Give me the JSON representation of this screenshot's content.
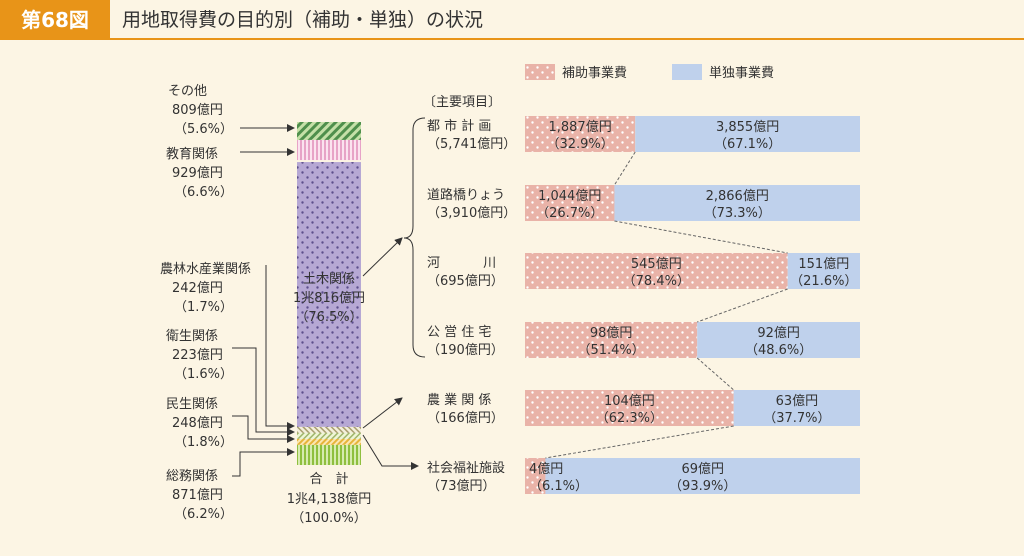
{
  "header": {
    "figure_no": "第68図",
    "title": "用地取得費の目的別（補助・単独）の状況"
  },
  "chart_data": {
    "type": "bar",
    "legend": [
      {
        "name": "補助事業費",
        "color": "#e9b3a8"
      },
      {
        "name": "単独事業費",
        "color": "#bfd1ec"
      }
    ],
    "stack_column": {
      "total_label": "合　計",
      "total_value": "1兆4,138億円",
      "total_pct": "（100.0%）",
      "segments": [
        {
          "name": "総務関係",
          "value": "871億円",
          "pct": "（6.2%）",
          "share": 6.2,
          "color": "#b5d66a"
        },
        {
          "name": "民生関係",
          "value": "248億円",
          "pct": "（1.8%）",
          "share": 1.8,
          "color": "#f2d17f"
        },
        {
          "name": "衛生関係",
          "value": "223億円",
          "pct": "（1.6%）",
          "share": 1.6,
          "color": "#e7f0c5"
        },
        {
          "name": "農林水産業関係",
          "value": "242億円",
          "pct": "（1.7%）",
          "share": 1.7,
          "color": "#e8e0c0"
        },
        {
          "name": "土木関係",
          "value": "1兆816億円",
          "pct": "（76.5%）",
          "share": 76.5,
          "color": "#b6a8d4"
        },
        {
          "name": "教育関係",
          "value": "929億円",
          "pct": "（6.6%）",
          "share": 6.6,
          "color": "#f2c1dc"
        },
        {
          "name": "その他",
          "value": "809億円",
          "pct": "（5.6%）",
          "share": 5.6,
          "color": "#8fc48c"
        }
      ]
    },
    "bracket_label": "〔主要項目〕",
    "categories": [
      "都市計画",
      "道路橋りょう",
      "河川",
      "公営住宅",
      "農業関係",
      "社会福祉施設"
    ],
    "items": [
      {
        "name": "都 市 計 画",
        "total": "（5,741億円）",
        "sub_value": "1,887億円",
        "sub_pct": "（32.9%）",
        "ind_value": "3,855億円",
        "ind_pct": "（67.1%）",
        "sub_share": 32.9
      },
      {
        "name": "道路橋りょう",
        "total": "（3,910億円）",
        "sub_value": "1,044億円",
        "sub_pct": "（26.7%）",
        "ind_value": "2,866億円",
        "ind_pct": "（73.3%）",
        "sub_share": 26.7
      },
      {
        "name": "河　　　 川",
        "total": "（695億円）",
        "sub_value": "545億円",
        "sub_pct": "（78.4%）",
        "ind_value": "151億円",
        "ind_pct": "（21.6%）",
        "sub_share": 78.4
      },
      {
        "name": "公 営 住 宅",
        "total": "（190億円）",
        "sub_value": "98億円",
        "sub_pct": "（51.4%）",
        "ind_value": "92億円",
        "ind_pct": "（48.6%）",
        "sub_share": 51.4
      },
      {
        "name": "農 業 関 係",
        "total": "（166億円）",
        "sub_value": "104億円",
        "sub_pct": "（62.3%）",
        "ind_value": "63億円",
        "ind_pct": "（37.7%）",
        "sub_share": 62.3
      },
      {
        "name": "社会福祉施設",
        "total": "（73億円）",
        "sub_value": "4億円",
        "sub_pct": "（6.1%）",
        "ind_value": "69億円",
        "ind_pct": "（93.9%）",
        "sub_share": 6.1
      }
    ]
  }
}
